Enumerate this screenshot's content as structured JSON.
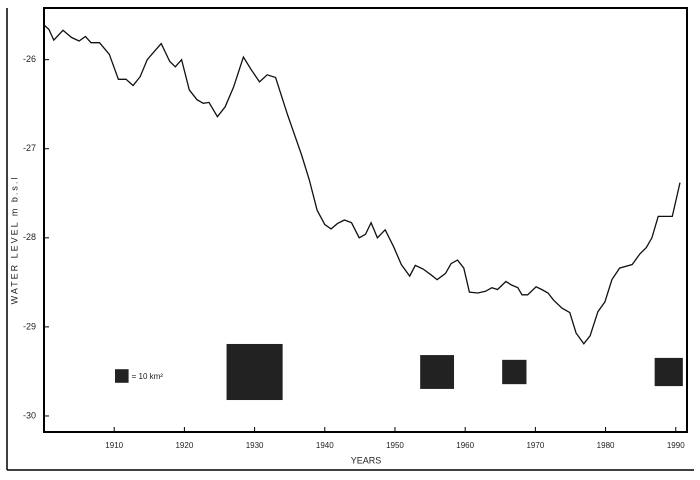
{
  "chart_data": {
    "type": "line",
    "x_label": "YEARS",
    "y_label": "WATER LEVEL m b.s.l",
    "x": [
      1900,
      1900.7,
      1901.4,
      1902.7,
      1903.9,
      1905,
      1905.9,
      1906.7,
      1907.9,
      1909.3,
      1910.6,
      1911.7,
      1912.7,
      1913.7,
      1914.7,
      1915.7,
      1916.7,
      1917.9,
      1918.7,
      1919.6,
      1920.7,
      1921.8,
      1922.7,
      1923.5,
      1924.7,
      1925.8,
      1927,
      1928.4,
      1929.5,
      1930.7,
      1931.8,
      1933,
      1934.7,
      1936.7,
      1937.8,
      1938.9,
      1940,
      1940.9,
      1941.8,
      1942.8,
      1943.8,
      1944.9,
      1945.8,
      1946.6,
      1947.5,
      1948.6,
      1949.8,
      1950.9,
      1952.1,
      1952.9,
      1954,
      1955.2,
      1956,
      1957.2,
      1958,
      1958.9,
      1959.8,
      1960.6,
      1961.8,
      1962.9,
      1963.8,
      1964.6,
      1965.8,
      1966.6,
      1967.5,
      1968.1,
      1968.9,
      1970.1,
      1970.9,
      1971.8,
      1972.6,
      1973.8,
      1974.9,
      1975.8,
      1976.9,
      1977.8,
      1978.9,
      1979.9,
      1980.9,
      1982,
      1983.8,
      1984.9,
      1985.8,
      1986.6,
      1987.5,
      1989.5,
      1990.6
    ],
    "values": [
      -25.61,
      -25.66,
      -25.78,
      -25.67,
      -25.75,
      -25.79,
      -25.74,
      -25.81,
      -25.81,
      -25.94,
      -26.22,
      -26.22,
      -26.29,
      -26.19,
      -26.0,
      -25.91,
      -25.82,
      -26.02,
      -26.08,
      -26.0,
      -26.34,
      -26.45,
      -26.49,
      -26.48,
      -26.64,
      -26.53,
      -26.31,
      -25.97,
      -26.11,
      -26.25,
      -26.17,
      -26.2,
      -26.62,
      -27.07,
      -27.35,
      -27.69,
      -27.85,
      -27.9,
      -27.84,
      -27.8,
      -27.83,
      -28.0,
      -27.96,
      -27.83,
      -28.0,
      -27.91,
      -28.1,
      -28.3,
      -28.43,
      -28.31,
      -28.35,
      -28.42,
      -28.47,
      -28.4,
      -28.29,
      -28.25,
      -28.34,
      -28.61,
      -28.62,
      -28.6,
      -28.56,
      -28.58,
      -28.49,
      -28.53,
      -28.56,
      -28.64,
      -28.64,
      -28.55,
      -28.58,
      -28.62,
      -28.7,
      -28.79,
      -28.84,
      -29.07,
      -29.19,
      -29.1,
      -28.83,
      -28.72,
      -28.47,
      -28.34,
      -28.3,
      -28.18,
      -28.11,
      -28.0,
      -27.76,
      -27.76,
      -27.38
    ],
    "color": "#111111",
    "xlim": [
      1900,
      1991.6
    ],
    "ylim": [
      -30.18,
      -25.42
    ],
    "xticks": [
      1910,
      1920,
      1930,
      1940,
      1950,
      1960,
      1970,
      1980,
      1990
    ],
    "yticks": [
      -26,
      -27,
      -28,
      -29,
      -30
    ],
    "areas": {
      "x": [
        1930,
        1956,
        1967,
        1989
      ],
      "values": [
        170,
        62,
        32,
        43
      ],
      "color": "#222222",
      "legend_value": 10,
      "legend_label": "= 10 km²"
    }
  }
}
